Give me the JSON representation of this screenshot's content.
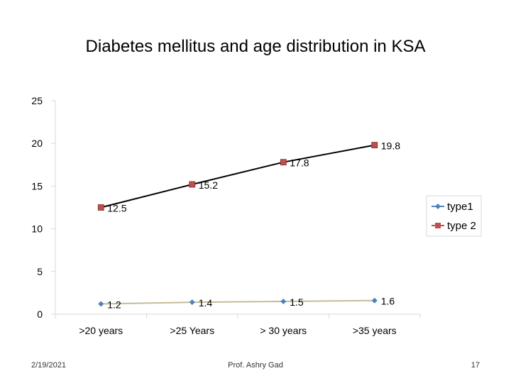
{
  "slide": {
    "title": "Diabetes mellitus and age distribution in KSA",
    "footer_date": "2/19/2021",
    "footer_author": "Prof. Ashry Gad",
    "page_number": "17"
  },
  "colors": {
    "type1": "#4f81bd",
    "type1_line": "#c4bd97",
    "type2": "#c0504d",
    "type2_line": "#000000",
    "gridline": "#d9d9d9"
  },
  "chart_data": {
    "type": "line",
    "title": "Diabetes mellitus and age distribution in KSA",
    "xlabel": "",
    "ylabel": "",
    "categories": [
      ">20 years",
      ">25 Years",
      "> 30 years",
      ">35 years"
    ],
    "ylim": [
      0,
      25
    ],
    "yticks": [
      0,
      5,
      10,
      15,
      20,
      25
    ],
    "grid": false,
    "legend_position": "right",
    "series": [
      {
        "name": "type1",
        "values": [
          1.2,
          1.4,
          1.5,
          1.6
        ],
        "labels": [
          "1.2",
          "1.4",
          "1.5",
          "1.6"
        ],
        "marker": "diamond"
      },
      {
        "name": "type 2",
        "values": [
          12.5,
          15.2,
          17.8,
          19.8
        ],
        "labels": [
          "12.5",
          "15.2",
          "17.8",
          "19.8"
        ],
        "marker": "square"
      }
    ]
  }
}
